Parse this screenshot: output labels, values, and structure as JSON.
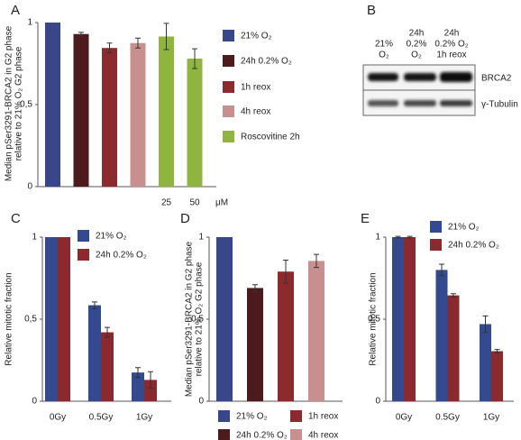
{
  "chart_data": [
    {
      "type": "bar",
      "panel": "A",
      "ylabel": [
        "Median pSer3291-BRCA2 in G2 phase",
        "relative to 21% O₂ G2 phase"
      ],
      "categories": [
        null,
        null,
        null,
        null,
        "25",
        "50"
      ],
      "x_unit": "μM",
      "series": [
        {
          "name": "21% O₂",
          "color": "#38468a",
          "values": [
            1.0,
            null,
            null,
            null,
            null,
            null
          ],
          "errors": [
            null,
            null,
            null,
            null,
            null,
            null
          ]
        },
        {
          "name": "24h 0.2% O₂",
          "color": "#4d1b1b",
          "values": [
            null,
            0.93,
            null,
            null,
            null,
            null
          ],
          "errors": [
            null,
            0.01,
            null,
            null,
            null,
            null
          ]
        },
        {
          "name": "1h reox",
          "color": "#8c2a2e",
          "values": [
            null,
            null,
            0.845,
            null,
            null,
            null
          ],
          "errors": [
            null,
            null,
            0.03,
            null,
            null,
            null
          ]
        },
        {
          "name": "4h reox",
          "color": "#c7908f",
          "values": [
            null,
            null,
            null,
            0.875,
            null,
            null
          ],
          "errors": [
            null,
            null,
            null,
            0.03,
            null,
            null
          ]
        },
        {
          "name": "Roscovitine 2h",
          "color": "#90b53e",
          "values": [
            null,
            null,
            null,
            null,
            0.915,
            0.78
          ],
          "errors": [
            null,
            null,
            null,
            null,
            0.08,
            0.06
          ]
        }
      ],
      "ylim": [
        0,
        1
      ],
      "yticks": [
        0,
        {
          "value": 0.5,
          "label": "0,5"
        },
        1
      ]
    },
    {
      "type": "bar",
      "panel": "C",
      "ylabel": [
        "Relative mitotic fraction"
      ],
      "categories": [
        "0Gy",
        "0.5Gy",
        "1Gy"
      ],
      "series": [
        {
          "name": "21% O₂",
          "color": "#344a8e",
          "values": [
            1.0,
            0.585,
            0.175
          ],
          "errors": [
            null,
            0.02,
            0.03
          ]
        },
        {
          "name": "24h 0.2% O₂",
          "color": "#8a2a2e",
          "values": [
            1.0,
            0.42,
            0.13
          ],
          "errors": [
            null,
            0.03,
            0.05
          ]
        }
      ],
      "ylim": [
        0,
        1
      ],
      "yticks": [
        0,
        {
          "value": 0.5,
          "label": "0,5"
        },
        1
      ]
    },
    {
      "type": "bar",
      "panel": "D",
      "ylabel": [
        "Median pSer3291-BRCA2 in G2 phase",
        "relative to 21% O₂ G2 phase"
      ],
      "categories": [
        null,
        null,
        null,
        null
      ],
      "series": [
        {
          "name": "21% O₂",
          "color": "#38468a",
          "values": [
            1.0,
            null,
            null,
            null
          ],
          "errors": [
            null,
            null,
            null,
            null
          ]
        },
        {
          "name": "24h 0.2% O₂",
          "color": "#4d1b1b",
          "values": [
            null,
            0.69,
            null,
            null
          ],
          "errors": [
            null,
            0.02,
            null,
            null
          ]
        },
        {
          "name": "1h reox",
          "color": "#8c2a2e",
          "values": [
            null,
            null,
            0.79,
            null
          ],
          "errors": [
            null,
            null,
            0.07,
            null
          ]
        },
        {
          "name": "4h reox",
          "color": "#c7908f",
          "values": [
            null,
            null,
            null,
            0.855
          ],
          "errors": [
            null,
            null,
            null,
            0.04
          ]
        }
      ],
      "ylim": [
        0,
        1
      ],
      "yticks": [
        0,
        {
          "value": 0.5,
          "label": "0,5"
        },
        1
      ]
    },
    {
      "type": "bar",
      "panel": "E",
      "ylabel": [
        "Relative mitotic fraction"
      ],
      "categories": [
        "0Gy",
        "0.5Gy",
        "1Gy"
      ],
      "series": [
        {
          "name": "21% O₂",
          "color": "#344a8e",
          "values": [
            1.0,
            0.8,
            0.47
          ],
          "errors": [
            0.005,
            0.035,
            0.05
          ]
        },
        {
          "name": "24h 0.2% O₂",
          "color": "#8a2a2e",
          "values": [
            1.0,
            0.645,
            0.305
          ],
          "errors": [
            0.005,
            0.01,
            0.01
          ]
        }
      ],
      "ylim": [
        0,
        1
      ],
      "yticks": [
        0,
        {
          "value": 0.5,
          "label": "0,5"
        },
        1
      ]
    }
  ],
  "blot": {
    "panel": "B",
    "lanes": [
      [
        "21%",
        "O₂"
      ],
      [
        "24h",
        "0.2%",
        "O₂"
      ],
      [
        "24h",
        "0.2% O₂",
        "1h reox"
      ]
    ],
    "bands": [
      "BRCA2",
      "γ-Tubulin"
    ]
  }
}
